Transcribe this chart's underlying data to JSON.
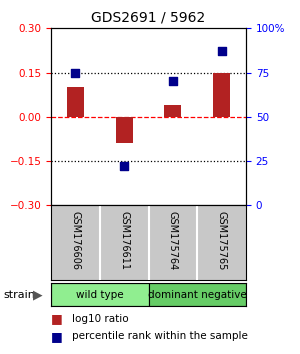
{
  "title": "GDS2691 / 5962",
  "samples": [
    "GSM176606",
    "GSM176611",
    "GSM175764",
    "GSM175765"
  ],
  "log10_ratio": [
    0.1,
    -0.09,
    0.04,
    0.15
  ],
  "percentile_rank": [
    75,
    22,
    70,
    87
  ],
  "groups": [
    {
      "label": "wild type",
      "color": "#90EE90",
      "indices": [
        0,
        1
      ]
    },
    {
      "label": "dominant negative",
      "color": "#66CC66",
      "indices": [
        2,
        3
      ]
    }
  ],
  "bar_color": "#B22222",
  "dot_color": "#00008B",
  "ylim_left": [
    -0.3,
    0.3
  ],
  "ylim_right": [
    0,
    100
  ],
  "yticks_left": [
    -0.3,
    -0.15,
    0,
    0.15,
    0.3
  ],
  "yticks_right": [
    0,
    25,
    50,
    75,
    100
  ],
  "hlines": [
    0.15,
    0.0,
    -0.15
  ],
  "hline_styles": [
    "dotted",
    "dashed",
    "dotted"
  ],
  "hline_colors": [
    "black",
    "red",
    "black"
  ],
  "legend_items": [
    {
      "label": "log10 ratio",
      "color": "#B22222"
    },
    {
      "label": "percentile rank within the sample",
      "color": "#00008B"
    }
  ],
  "strain_label": "strain",
  "label_bg": "#C8C8C8",
  "bar_width": 0.35,
  "dot_size": 35
}
